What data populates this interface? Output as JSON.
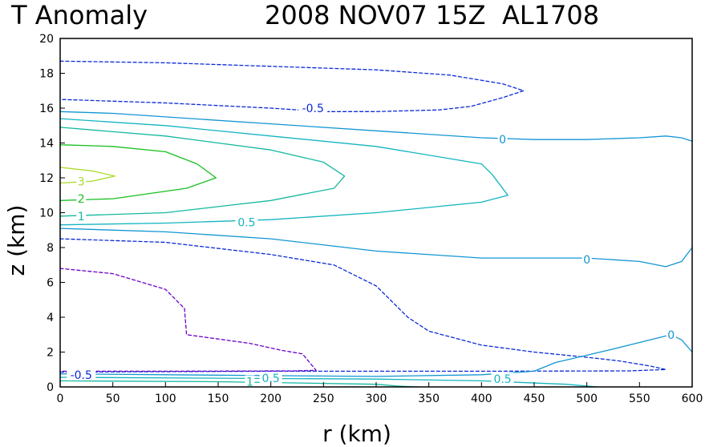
{
  "chart_data": {
    "type": "contour",
    "title_left": "T Anomaly",
    "title_right": "2008 NOV07 15Z  AL1708",
    "xlabel": "r (km)",
    "ylabel": "z (km)",
    "xlim": [
      0,
      600
    ],
    "ylim": [
      0,
      20
    ],
    "x_ticks": [
      0,
      50,
      100,
      150,
      200,
      250,
      300,
      350,
      400,
      450,
      500,
      550,
      600
    ],
    "y_ticks": [
      0,
      2,
      4,
      6,
      8,
      10,
      12,
      14,
      16,
      18,
      20
    ],
    "colors": {
      "neg1": "#6a00c8",
      "neg05": "#0a2ad8",
      "zero": "#1296d2",
      "pos05": "#14b4c0",
      "pos1": "#14b8a0",
      "pos15": "#14c078",
      "pos2": "#18c020",
      "pos3": "#a8dc28"
    },
    "contours": [
      {
        "level": -0.5,
        "style": "dashed",
        "color": "neg05",
        "points": [
          [
            0,
            18.7
          ],
          [
            100,
            18.6
          ],
          [
            200,
            18.4
          ],
          [
            300,
            18.2
          ],
          [
            370,
            17.9
          ],
          [
            420,
            17.4
          ],
          [
            440,
            17.0
          ],
          [
            420,
            16.6
          ],
          [
            390,
            16.1
          ],
          [
            360,
            15.9
          ],
          [
            300,
            15.8
          ],
          [
            250,
            15.8
          ],
          [
            200,
            16.0
          ],
          [
            100,
            16.3
          ],
          [
            0,
            16.5
          ]
        ]
      },
      {
        "level": 0,
        "style": "solid",
        "color": "zero",
        "points": [
          [
            0,
            15.8
          ],
          [
            50,
            15.7
          ],
          [
            100,
            15.5
          ],
          [
            200,
            15.1
          ],
          [
            300,
            14.7
          ],
          [
            400,
            14.3
          ],
          [
            450,
            14.2
          ],
          [
            500,
            14.2
          ],
          [
            550,
            14.3
          ],
          [
            575,
            14.4
          ],
          [
            590,
            14.3
          ],
          [
            600,
            14.1
          ]
        ]
      },
      {
        "level": 0.5,
        "style": "solid",
        "color": "pos05",
        "points": [
          [
            0,
            15.4
          ],
          [
            100,
            15.0
          ],
          [
            200,
            14.4
          ],
          [
            300,
            13.8
          ],
          [
            400,
            12.8
          ],
          [
            410,
            12.2
          ],
          [
            425,
            11.0
          ],
          [
            400,
            10.6
          ],
          [
            300,
            10.0
          ],
          [
            200,
            9.6
          ],
          [
            100,
            9.4
          ],
          [
            0,
            9.3
          ]
        ]
      },
      {
        "level": 1,
        "style": "solid",
        "color": "pos1",
        "points": [
          [
            0,
            14.9
          ],
          [
            100,
            14.4
          ],
          [
            200,
            13.6
          ],
          [
            250,
            12.9
          ],
          [
            270,
            12.1
          ],
          [
            260,
            11.4
          ],
          [
            200,
            10.7
          ],
          [
            100,
            10.0
          ],
          [
            0,
            9.8
          ]
        ]
      },
      {
        "level": 2,
        "style": "solid",
        "color": "pos2",
        "points": [
          [
            0,
            13.9
          ],
          [
            50,
            13.8
          ],
          [
            100,
            13.5
          ],
          [
            130,
            12.8
          ],
          [
            148,
            12.0
          ],
          [
            120,
            11.4
          ],
          [
            50,
            10.8
          ],
          [
            0,
            10.7
          ]
        ]
      },
      {
        "level": 3,
        "style": "solid",
        "color": "pos3",
        "points": [
          [
            0,
            12.6
          ],
          [
            30,
            12.4
          ],
          [
            52,
            12.1
          ],
          [
            30,
            11.8
          ],
          [
            0,
            11.7
          ]
        ]
      },
      {
        "level": 0,
        "style": "solid",
        "color": "zero",
        "points": [
          [
            0,
            9.1
          ],
          [
            100,
            8.9
          ],
          [
            200,
            8.5
          ],
          [
            300,
            7.8
          ],
          [
            400,
            7.4
          ],
          [
            500,
            7.4
          ],
          [
            550,
            7.2
          ],
          [
            575,
            6.9
          ],
          [
            590,
            7.2
          ],
          [
            600,
            8.0
          ]
        ]
      },
      {
        "level": -0.5,
        "style": "dashed",
        "color": "neg05",
        "points": [
          [
            0,
            8.5
          ],
          [
            100,
            8.3
          ],
          [
            200,
            7.6
          ],
          [
            260,
            7.0
          ],
          [
            300,
            5.8
          ],
          [
            330,
            4.0
          ],
          [
            350,
            3.2
          ],
          [
            400,
            2.4
          ],
          [
            450,
            2.0
          ],
          [
            500,
            1.7
          ],
          [
            530,
            1.5
          ],
          [
            560,
            1.2
          ],
          [
            575,
            1.0
          ],
          [
            540,
            0.92
          ],
          [
            400,
            0.9
          ],
          [
            200,
            0.9
          ],
          [
            0,
            0.85
          ]
        ]
      },
      {
        "level": -1,
        "style": "dashed",
        "color": "neg1",
        "points": [
          [
            0,
            6.8
          ],
          [
            50,
            6.5
          ],
          [
            100,
            5.6
          ],
          [
            118,
            4.5
          ],
          [
            120,
            3.0
          ],
          [
            180,
            2.5
          ],
          [
            210,
            2.1
          ],
          [
            230,
            1.9
          ],
          [
            243,
            0.95
          ],
          [
            220,
            0.92
          ],
          [
            100,
            0.9
          ],
          [
            0,
            0.9
          ]
        ]
      },
      {
        "level": 0,
        "style": "solid",
        "color": "zero",
        "points": [
          [
            0,
            0.75
          ],
          [
            200,
            0.65
          ],
          [
            300,
            0.6
          ],
          [
            400,
            0.7
          ],
          [
            450,
            0.9
          ],
          [
            470,
            1.4
          ],
          [
            520,
            2.1
          ],
          [
            560,
            2.7
          ],
          [
            580,
            3.0
          ],
          [
            590,
            2.7
          ],
          [
            600,
            2.0
          ]
        ]
      },
      {
        "level": 0.5,
        "style": "solid",
        "color": "pos05",
        "points": [
          [
            0,
            0.55
          ],
          [
            150,
            0.5
          ],
          [
            300,
            0.45
          ],
          [
            400,
            0.35
          ],
          [
            480,
            0.15
          ],
          [
            510,
            0.0
          ]
        ]
      },
      {
        "level": 1,
        "style": "solid",
        "color": "pos1",
        "points": [
          [
            0,
            0.35
          ],
          [
            150,
            0.3
          ],
          [
            300,
            0.15
          ],
          [
            320,
            0.05
          ],
          [
            340,
            0.0
          ]
        ]
      }
    ],
    "labels": [
      {
        "text": "-0.5",
        "x": 240,
        "y": 16.0,
        "color": "neg05"
      },
      {
        "text": "0",
        "x": 420,
        "y": 14.2,
        "color": "zero"
      },
      {
        "text": "3",
        "x": 20,
        "y": 11.8,
        "color": "pos3"
      },
      {
        "text": "2",
        "x": 20,
        "y": 10.8,
        "color": "pos2"
      },
      {
        "text": "1",
        "x": 20,
        "y": 9.8,
        "color": "pos1"
      },
      {
        "text": "0.5",
        "x": 177,
        "y": 9.45,
        "color": "pos05"
      },
      {
        "text": "0",
        "x": 500,
        "y": 7.3,
        "color": "zero"
      },
      {
        "text": "0",
        "x": 580,
        "y": 3.0,
        "color": "zero"
      },
      {
        "text": "-0.5",
        "x": 20,
        "y": 0.7,
        "color": "neg05"
      },
      {
        "text": "1",
        "x": 180,
        "y": 0.3,
        "color": "pos1"
      },
      {
        "text": "0.5",
        "x": 200,
        "y": 0.5,
        "color": "pos05"
      },
      {
        "text": "0.5",
        "x": 420,
        "y": 0.45,
        "color": "pos05"
      }
    ]
  }
}
